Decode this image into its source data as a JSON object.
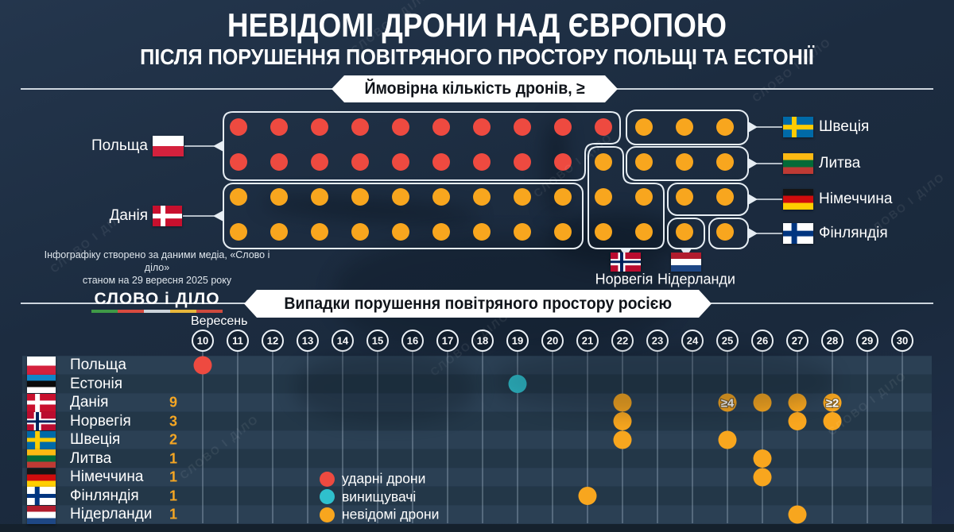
{
  "header": {
    "title": "НЕВІДОМІ ДРОНИ НАД ЄВРОПОЮ",
    "subtitle": "ПІСЛЯ ПОРУШЕННЯ ПОВІТРЯНОГО ПРОСТОРУ ПОЛЬЩІ ТА ЕСТОНІЇ"
  },
  "attribution": {
    "line1": "Інфографіку створено за даними медіа, «Слово і діло»",
    "line2": "станом на 29 вересня 2025 року",
    "logo": "СЛОВО і ДІЛО",
    "logo_colors": [
      "#3f9a47",
      "#d84b40",
      "#ccd3da",
      "#e7b73b",
      "#cf4a3e"
    ]
  },
  "watermark": "СЛОВО І ДІЛО",
  "colors": {
    "strike": "#ee4a40",
    "fighter": "#2fc0cd",
    "unknown": "#f8a61e",
    "count_text": "#f5a623",
    "box_outline": "#e6edf3",
    "band_light": "#2b4054",
    "band_dark": "#233748",
    "grid_line": "rgba(205,220,238,0.45)",
    "day_circle_stroke": "#eef3f8"
  },
  "flags": {
    "pl": {
      "stripes": [
        "#ffffff",
        "#d4213d"
      ]
    },
    "dk": {
      "bg": "#c8102e",
      "cross": "#ffffff",
      "cw": 0.16,
      "ch": 0.22
    },
    "se": {
      "bg": "#006aa7",
      "cross": "#fecc02",
      "cw": 0.16,
      "ch": 0.22
    },
    "fi": {
      "bg": "#ffffff",
      "cross": "#003580",
      "cw": 0.18,
      "ch": 0.26
    },
    "no": {
      "bg": "#ba0c2f",
      "cross": "#ffffff",
      "inner": "#00205b",
      "cw": 0.24,
      "ch": 0.32
    },
    "lt": {
      "stripes": [
        "#fdb913",
        "#046a38",
        "#be3a34"
      ]
    },
    "de": {
      "stripes": [
        "#151515",
        "#d00c0c",
        "#ffce00"
      ]
    },
    "nl": {
      "stripes": [
        "#b01c2e",
        "#ffffff",
        "#1e4785"
      ]
    },
    "ee": {
      "stripes": [
        "#1086c8",
        "#0b0b0b",
        "#ffffff"
      ]
    }
  },
  "chart_data": [
    {
      "type": "dot-matrix",
      "banner": "Ймовірна кількість дронів, ≥",
      "groups": [
        {
          "id": "poland",
          "label": "Польща",
          "flag": "pl",
          "dot_type": "strike",
          "count": 19,
          "cells": [
            [
              0,
              0,
              9
            ],
            [
              1,
              0,
              8
            ]
          ]
        },
        {
          "id": "denmark",
          "label": "Данія",
          "flag": "dk",
          "dot_type": "unknown",
          "count": 18,
          "cells": [
            [
              2,
              0,
              8
            ],
            [
              3,
              0,
              8
            ]
          ]
        },
        {
          "id": "sweden",
          "label": "Швеція",
          "flag": "se",
          "dot_type": "unknown",
          "count": 3,
          "cells": [
            [
              0,
              10,
              12
            ]
          ]
        },
        {
          "id": "lithuania",
          "label": "Литва",
          "flag": "lt",
          "dot_type": "unknown",
          "count": 3,
          "cells": [
            [
              1,
              10,
              12
            ]
          ]
        },
        {
          "id": "norway",
          "label": "Норвегія",
          "flag": "no",
          "dot_type": "unknown",
          "count": 5,
          "cells": [
            [
              1,
              9,
              9
            ],
            [
              2,
              9,
              10
            ],
            [
              3,
              9,
              10
            ]
          ]
        },
        {
          "id": "germany",
          "label": "Німеччина",
          "flag": "de",
          "dot_type": "unknown",
          "count": 2,
          "cells": [
            [
              2,
              11,
              12
            ]
          ]
        },
        {
          "id": "netherlands",
          "label": "Нідерланди",
          "flag": "nl",
          "dot_type": "unknown",
          "count": 1,
          "cells": [
            [
              3,
              11,
              11
            ]
          ]
        },
        {
          "id": "finland",
          "label": "Фінляндія",
          "flag": "fi",
          "dot_type": "unknown",
          "count": 1,
          "cells": [
            [
              3,
              12,
              12
            ]
          ]
        }
      ]
    },
    {
      "type": "timeline-scatter",
      "banner": "Випадки порушення повітряного простору росією",
      "month_label": "Вересень",
      "days": {
        "start": 10,
        "end": 30
      },
      "rows": [
        {
          "label": "Польща",
          "flag": "pl",
          "count": "",
          "events": [
            {
              "day": 10,
              "type": "strike"
            }
          ]
        },
        {
          "label": "Естонія",
          "flag": "ee",
          "count": "",
          "events": [
            {
              "day": 19,
              "type": "fighter"
            }
          ]
        },
        {
          "label": "Данія",
          "flag": "dk",
          "count": "9",
          "events": [
            {
              "day": 22
            },
            {
              "day": 25,
              "label": "≥4"
            },
            {
              "day": 26
            },
            {
              "day": 27
            },
            {
              "day": 28,
              "label": "≥2"
            }
          ]
        },
        {
          "label": "Норвегія",
          "flag": "no",
          "count": "3",
          "events": [
            {
              "day": 22
            },
            {
              "day": 27
            },
            {
              "day": 28
            }
          ]
        },
        {
          "label": "Швеція",
          "flag": "se",
          "count": "2",
          "events": [
            {
              "day": 22
            },
            {
              "day": 25
            }
          ]
        },
        {
          "label": "Литва",
          "flag": "lt",
          "count": "1",
          "events": [
            {
              "day": 26
            }
          ]
        },
        {
          "label": "Німеччина",
          "flag": "de",
          "count": "1",
          "events": [
            {
              "day": 26
            }
          ]
        },
        {
          "label": "Фінляндія",
          "flag": "fi",
          "count": "1",
          "events": [
            {
              "day": 21
            }
          ]
        },
        {
          "label": "Нідерланди",
          "flag": "nl",
          "count": "1",
          "events": [
            {
              "day": 27
            }
          ]
        }
      ],
      "legend": [
        {
          "type": "strike",
          "label": "ударні дрони"
        },
        {
          "type": "fighter",
          "label": "винищувачі"
        },
        {
          "type": "unknown",
          "label": "невідомі дрони"
        }
      ]
    }
  ]
}
